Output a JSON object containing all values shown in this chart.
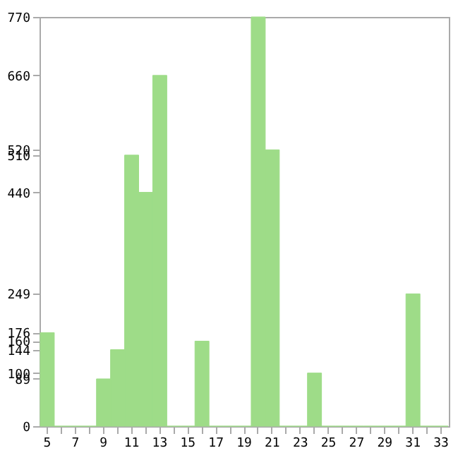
{
  "chart_data": {
    "type": "bar",
    "categories": [
      "5",
      null,
      "7",
      null,
      "9",
      null,
      "11",
      null,
      "13",
      null,
      "15",
      null,
      "17",
      null,
      "19",
      null,
      "21",
      null,
      "23",
      null,
      "25",
      null,
      "27",
      null,
      "29",
      null,
      "31",
      null,
      "33"
    ],
    "values": [
      176,
      0,
      0,
      0,
      89,
      144,
      510,
      440,
      660,
      0,
      0,
      160,
      0,
      0,
      0,
      770,
      520,
      0,
      0,
      100,
      0,
      0,
      0,
      0,
      0,
      0,
      249,
      0,
      0
    ],
    "color": "#9edc88",
    "ylim": [
      0,
      770
    ],
    "yticks": [
      0,
      89,
      100,
      144,
      160,
      176,
      249,
      440,
      510,
      520,
      660,
      770
    ],
    "grid": false
  }
}
